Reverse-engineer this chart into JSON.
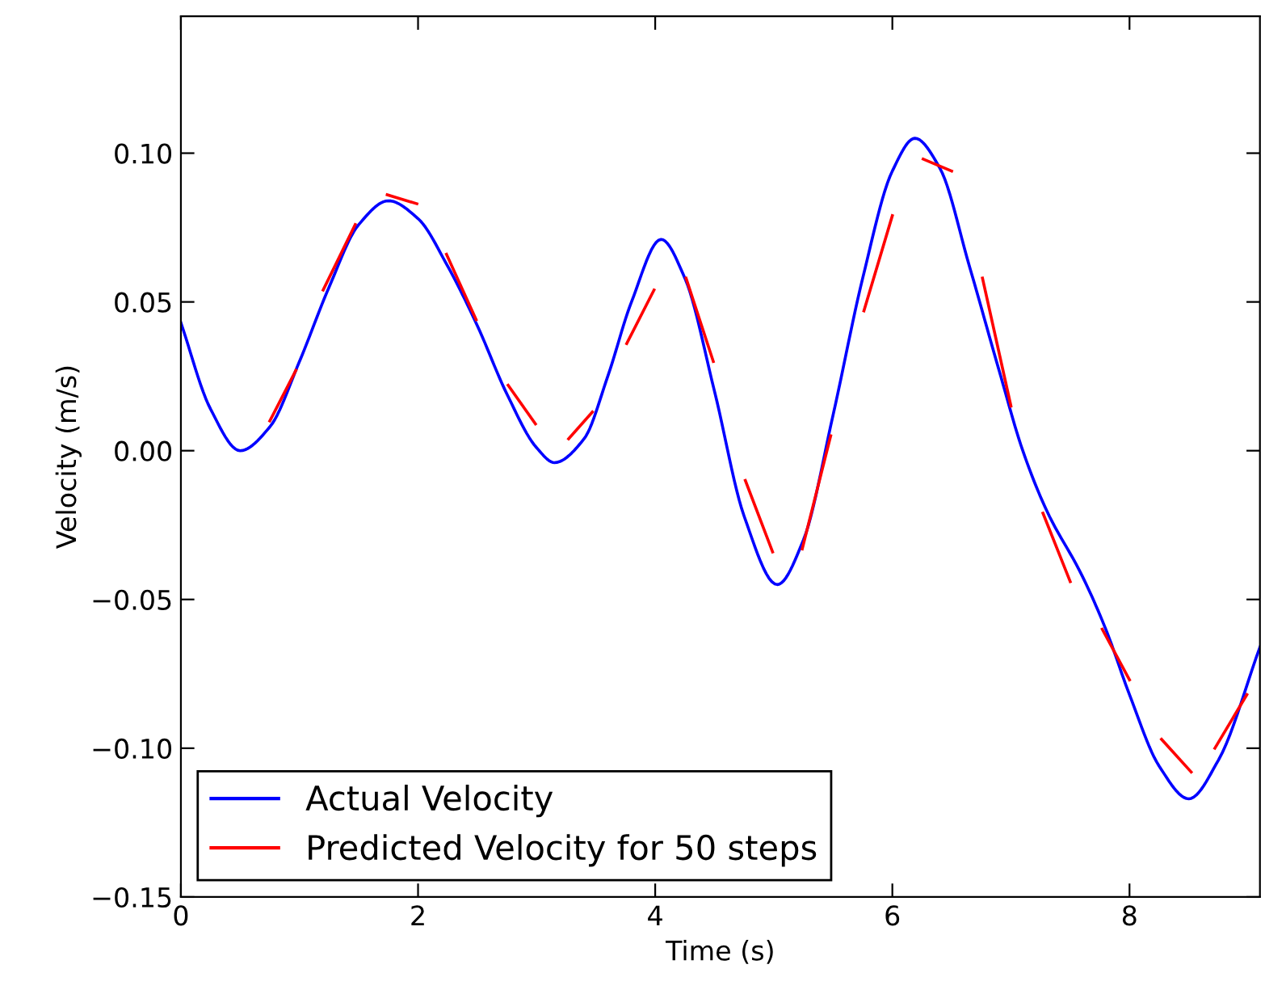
{
  "chart_data": {
    "type": "line",
    "xlabel": "Time (s)",
    "ylabel": "Velocity (m/s)",
    "xlim": [
      0,
      9.1
    ],
    "ylim": [
      -0.15,
      0.146
    ],
    "xticks": [
      0,
      2,
      4,
      6,
      8
    ],
    "yticks": [
      {
        "value": -0.15,
        "label": "−0.15"
      },
      {
        "value": -0.1,
        "label": "−0.10"
      },
      {
        "value": -0.05,
        "label": "−0.05"
      },
      {
        "value": 0,
        "label": "0.00"
      },
      {
        "value": 0.05,
        "label": "0.05"
      },
      {
        "value": 0.1,
        "label": "0.10"
      }
    ],
    "grid": false,
    "legend": "bottom left",
    "marker": "none",
    "line_style": "solid",
    "series": [
      {
        "name": "Actual Velocity",
        "color": "#0000ff",
        "x": [
          0,
          0.25,
          0.5,
          0.75,
          1.0,
          1.25,
          1.5,
          1.75,
          2.0,
          2.25,
          2.5,
          2.75,
          3.0,
          3.15,
          3.4,
          3.6,
          3.8,
          4.05,
          4.25,
          4.5,
          4.75,
          5.03,
          5.25,
          5.5,
          5.75,
          6.0,
          6.19,
          6.4,
          6.65,
          6.9,
          7.1,
          7.3,
          7.6,
          7.8,
          8.0,
          8.25,
          8.5,
          8.75,
          9.1
        ],
        "values": [
          0.043,
          0.014,
          0.0,
          0.008,
          0.03,
          0.055,
          0.076,
          0.084,
          0.078,
          0.062,
          0.042,
          0.019,
          0.001,
          -0.004,
          0.004,
          0.025,
          0.05,
          0.071,
          0.058,
          0.02,
          -0.022,
          -0.045,
          -0.03,
          0.012,
          0.058,
          0.094,
          0.105,
          0.095,
          0.062,
          0.027,
          0.0,
          -0.02,
          -0.042,
          -0.06,
          -0.082,
          -0.106,
          -0.117,
          -0.104,
          -0.066
        ]
      },
      {
        "name": "Predicted Velocity for 50 steps",
        "color": "#ff0000",
        "x": [
          0.75,
          0.97
        ],
        "values": [
          0.01,
          0.027
        ]
      },
      {
        "color": "#ff0000",
        "x": [
          1.2,
          1.47
        ],
        "values": [
          0.054,
          0.076
        ]
      },
      {
        "color": "#ff0000",
        "x": [
          1.74,
          1.99
        ],
        "values": [
          0.086,
          0.083
        ]
      },
      {
        "color": "#ff0000",
        "x": [
          2.24,
          2.49
        ],
        "values": [
          0.066,
          0.044
        ]
      },
      {
        "color": "#ff0000",
        "x": [
          2.76,
          2.99
        ],
        "values": [
          0.022,
          0.009
        ]
      },
      {
        "color": "#ff0000",
        "x": [
          3.27,
          3.47
        ],
        "values": [
          0.004,
          0.013
        ]
      },
      {
        "color": "#ff0000",
        "x": [
          3.76,
          3.99
        ],
        "values": [
          0.036,
          0.054
        ]
      },
      {
        "color": "#ff0000",
        "x": [
          4.26,
          4.49
        ],
        "values": [
          0.058,
          0.03
        ]
      },
      {
        "color": "#ff0000",
        "x": [
          4.76,
          4.99
        ],
        "values": [
          -0.01,
          -0.034
        ]
      },
      {
        "color": "#ff0000",
        "x": [
          5.24,
          5.48
        ],
        "values": [
          -0.033,
          0.005
        ]
      },
      {
        "color": "#ff0000",
        "x": [
          5.76,
          6.0
        ],
        "values": [
          0.047,
          0.079
        ]
      },
      {
        "color": "#ff0000",
        "x": [
          6.26,
          6.5
        ],
        "values": [
          0.098,
          0.094
        ]
      },
      {
        "color": "#ff0000",
        "x": [
          6.76,
          7.0
        ],
        "values": [
          0.058,
          0.015
        ]
      },
      {
        "color": "#ff0000",
        "x": [
          7.27,
          7.5
        ],
        "values": [
          -0.021,
          -0.044
        ]
      },
      {
        "color": "#ff0000",
        "x": [
          7.77,
          8.0
        ],
        "values": [
          -0.06,
          -0.077
        ]
      },
      {
        "color": "#ff0000",
        "x": [
          8.27,
          8.52
        ],
        "values": [
          -0.097,
          -0.108
        ]
      },
      {
        "color": "#ff0000",
        "x": [
          8.72,
          8.99
        ],
        "values": [
          -0.1,
          -0.082
        ]
      }
    ]
  }
}
